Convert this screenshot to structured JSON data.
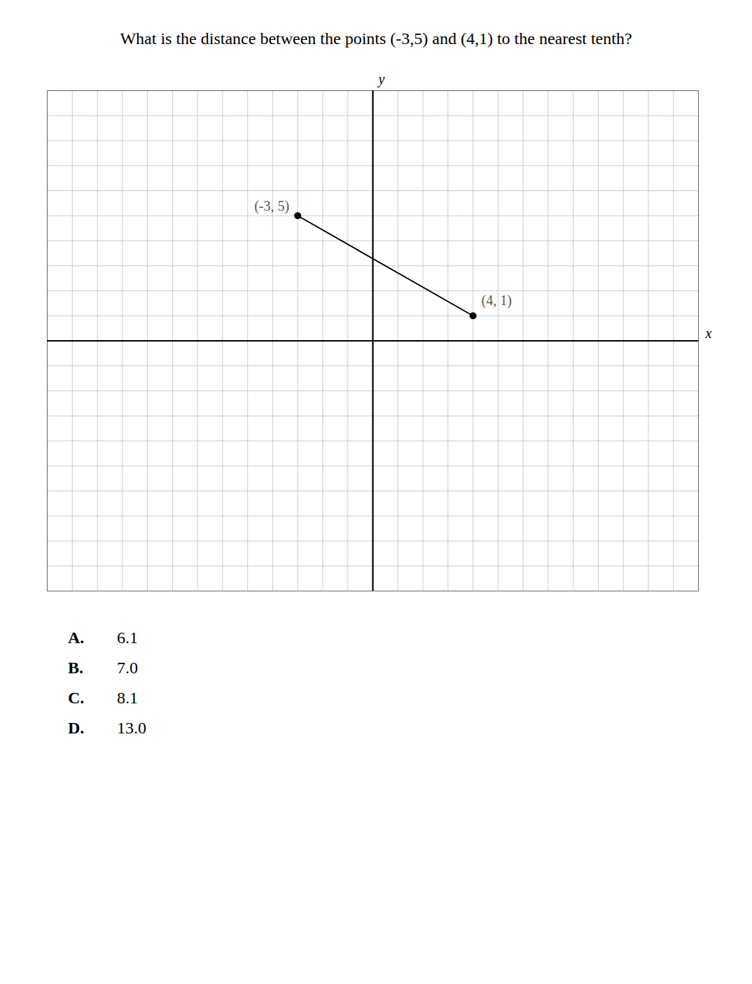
{
  "chart_data": {
    "type": "line",
    "title": "What is the distance between the points (-3,5) and (4,1) to the nearest tenth?",
    "x": [
      -3,
      4
    ],
    "values": [
      5,
      1
    ],
    "color": "#000000",
    "marker": "circle",
    "xlabel": "x",
    "ylabel": "y",
    "xlim": [
      -13,
      13
    ],
    "ylim": [
      -10,
      10
    ],
    "xticks": [
      -13,
      -12,
      -11,
      -10,
      -9,
      -8,
      -7,
      -6,
      -5,
      -4,
      -3,
      -2,
      -1,
      0,
      1,
      2,
      3,
      4,
      5,
      6,
      7,
      8,
      9,
      10,
      11,
      12,
      13
    ],
    "yticks": [
      -10,
      -9,
      -8,
      -7,
      -6,
      -5,
      -4,
      -3,
      -2,
      -1,
      0,
      1,
      2,
      3,
      4,
      5,
      6,
      7,
      8,
      9,
      10
    ],
    "grid": true,
    "tick_labels": false,
    "annotations": [
      {
        "text": "(-3, 5)",
        "x": -3,
        "y": 5
      },
      {
        "text": "(4, 1)",
        "x": 4,
        "y": 1
      }
    ],
    "choices": [
      [
        "A.",
        "6.1"
      ],
      [
        "B.",
        "7.0"
      ],
      [
        "C.",
        "8.1"
      ],
      [
        "D.",
        "13.0"
      ]
    ]
  }
}
